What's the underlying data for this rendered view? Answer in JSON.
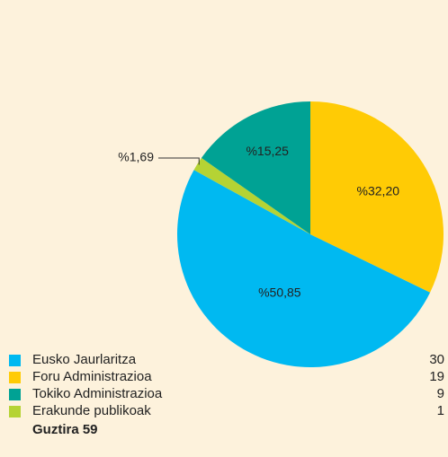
{
  "chart_data": {
    "type": "pie",
    "categories": [
      "Eusko Jaurlaritza",
      "Foru Administrazioa",
      "Tokiko Administrazioa",
      "Erakunde publikoak"
    ],
    "values": [
      50.85,
      32.2,
      15.25,
      1.69
    ],
    "value_labels": [
      "%50,85",
      "%32,20",
      "%15,25",
      "%1,69"
    ],
    "colors": [
      "#00b9f1",
      "#ffcb05",
      "#00a294",
      "#b5d334"
    ],
    "counts": [
      30,
      19,
      9,
      1
    ],
    "total_label": "Guztira 59"
  }
}
